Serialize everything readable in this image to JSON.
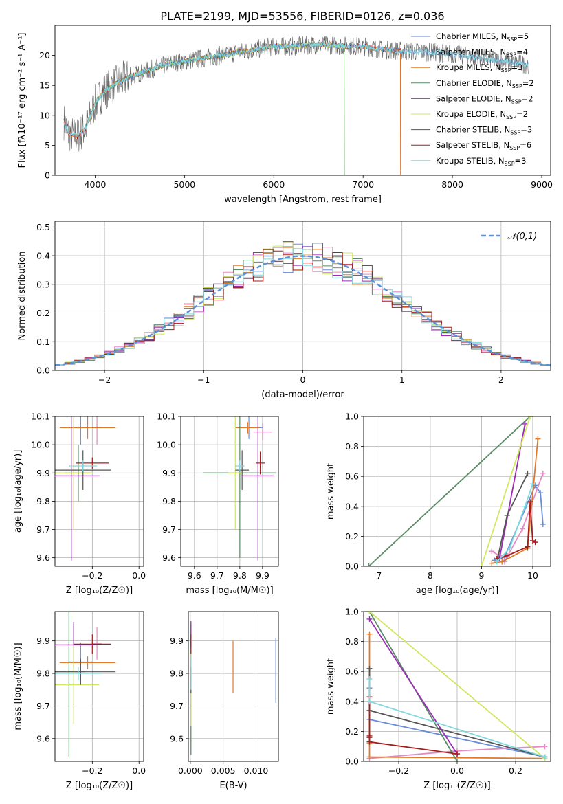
{
  "figure": {
    "title": "PLATE=2199, MJD=53556, FIBERID=0126, z=0.036"
  },
  "colors": {
    "Chabrier MILES": "#6a8bd9",
    "Salpeter MILES": "#e38ac2",
    "Kroupa MILES": "#e07a2a",
    "Chabrier ELODIE": "#5a8a66",
    "Salpeter ELODIE": "#9b2bb5",
    "Kroupa ELODIE": "#cfe860",
    "Chabrier STELIB": "#555555",
    "Salpeter STELIB": "#a81c1c",
    "Kroupa STELIB": "#7fd8e0"
  },
  "chart_data": [
    {
      "id": "spectrum",
      "type": "line",
      "title": "",
      "xlabel": "wavelength [Angstrom, rest frame]",
      "ylabel": "Flux [fλ10⁻¹⁷ erg cm⁻² s⁻¹ A⁻¹]",
      "xlim": [
        3550,
        9100
      ],
      "ylim": [
        0,
        25
      ],
      "xticks": [
        4000,
        5000,
        6000,
        7000,
        8000,
        9000
      ],
      "yticks": [
        0,
        5,
        10,
        15,
        20
      ],
      "grid": false,
      "legend_position": "top-right",
      "legend": [
        {
          "name": "Chabrier MILES",
          "nssp": "5"
        },
        {
          "name": "Salpeter MILES",
          "nssp": "4"
        },
        {
          "name": "Kroupa MILES",
          "nssp": "3"
        },
        {
          "name": "Chabrier ELODIE",
          "nssp": "2"
        },
        {
          "name": "Salpeter ELODIE",
          "nssp": "2"
        },
        {
          "name": "Kroupa ELODIE",
          "nssp": "2"
        },
        {
          "name": "Chabrier STELIB",
          "nssp": "3"
        },
        {
          "name": "Salpeter STELIB",
          "nssp": "6"
        },
        {
          "name": "Kroupa STELIB",
          "nssp": "3"
        }
      ],
      "continuum": {
        "x": [
          3650,
          3700,
          3800,
          3900,
          4000,
          4100,
          4200,
          4400,
          4600,
          4800,
          5000,
          5200,
          5400,
          5600,
          5800,
          6000,
          6200,
          6500,
          6800,
          7000,
          7200,
          7400,
          7600,
          7800,
          8000,
          8200,
          8400,
          8600,
          8800
        ],
        "y": [
          9,
          7,
          6.5,
          8,
          12,
          14,
          15,
          16.5,
          17.5,
          18.5,
          19,
          19.5,
          20,
          20.5,
          21,
          21.5,
          21.5,
          21.8,
          21.6,
          21.5,
          21,
          20.8,
          20.6,
          20.5,
          20.2,
          19.8,
          19.3,
          19,
          18.5
        ]
      },
      "model_range": {
        "x": [
          3650,
          8850
        ],
        "note_models": [
          "MILES",
          "ELODIE",
          "STELIB"
        ]
      }
    },
    {
      "id": "residuals",
      "type": "bar",
      "title": "",
      "xlabel": "(data-model)/error",
      "ylabel": "Normed distribution",
      "xlim": [
        -2.5,
        2.5
      ],
      "ylim": [
        0,
        0.52
      ],
      "xticks": [
        -2,
        -1,
        0,
        1,
        2
      ],
      "yticks": [
        0.0,
        0.1,
        0.2,
        0.3,
        0.4,
        0.5
      ],
      "grid": true,
      "legend_position": "top-right",
      "legend": [
        {
          "name": "𝒩(0,1)"
        }
      ],
      "bin_width": 0.1
    },
    {
      "id": "z-age",
      "type": "scatter",
      "xlabel": "Z [log₁₀(Z/Z☉)]",
      "ylabel": "age  [log₁₀(age/yr)]",
      "xlim": [
        -0.36,
        0.02
      ],
      "ylim": [
        9.57,
        10.1
      ],
      "xticks": [
        -0.2,
        0.0
      ],
      "yticks": [
        9.6,
        9.7,
        9.8,
        9.9,
        10.0,
        10.1
      ],
      "grid": true,
      "points": [
        {
          "model": "Chabrier MILES",
          "x": -0.25,
          "y": 10.06,
          "xerr": 0.02,
          "yerr": 0.06
        },
        {
          "model": "Salpeter MILES",
          "x": -0.18,
          "y": 10.06,
          "xerr": 0.02,
          "yerr": 0.06
        },
        {
          "model": "Kroupa MILES",
          "x": -0.22,
          "y": 10.06,
          "xerr": 0.12,
          "yerr": 0.04
        },
        {
          "model": "Chabrier ELODIE",
          "x": -0.26,
          "y": 9.9,
          "xerr": 0.06,
          "yerr": 0.1
        },
        {
          "model": "Salpeter ELODIE",
          "x": -0.29,
          "y": 9.89,
          "xerr": 0.12,
          "yerr": 0.3
        },
        {
          "model": "Kroupa ELODIE",
          "x": -0.28,
          "y": 9.9,
          "xerr": 0.08,
          "yerr": 0.2
        },
        {
          "model": "Chabrier STELIB",
          "x": -0.24,
          "y": 9.91,
          "xerr": 0.12,
          "yerr": 0.07
        },
        {
          "model": "Salpeter STELIB",
          "x": -0.2,
          "y": 9.935,
          "xerr": 0.07,
          "yerr": 0.02
        },
        {
          "model": "Kroupa STELIB",
          "x": -0.24,
          "y": 9.925,
          "xerr": 0.06,
          "yerr": 0.02
        }
      ]
    },
    {
      "id": "mass-age",
      "type": "scatter",
      "xlabel": "mass [log₁₀(M/M☉)]",
      "ylabel": "",
      "xlim": [
        9.54,
        9.97
      ],
      "ylim": [
        9.57,
        10.1
      ],
      "xticks": [
        9.6,
        9.7,
        9.8,
        9.9
      ],
      "yticks": [
        9.6,
        9.7,
        9.8,
        9.9,
        10.0,
        10.1
      ],
      "grid": true,
      "points": [
        {
          "model": "Chabrier MILES",
          "x": 9.84,
          "y": 10.06,
          "xerr": 0.06,
          "yerr": 0.04
        },
        {
          "model": "Salpeter MILES",
          "x": 9.9,
          "y": 10.045,
          "xerr": 0.04,
          "yerr": 0.03
        },
        {
          "model": "Kroupa MILES",
          "x": 9.835,
          "y": 10.06,
          "xerr": 0.05,
          "yerr": 0.02
        },
        {
          "model": "Chabrier ELODIE",
          "x": 9.8,
          "y": 9.9,
          "xerr": 0.16,
          "yerr": 0.3
        },
        {
          "model": "Salpeter ELODIE",
          "x": 9.88,
          "y": 9.89,
          "xerr": 0.07,
          "yerr": 0.3
        },
        {
          "model": "Kroupa ELODIE",
          "x": 9.78,
          "y": 9.9,
          "xerr": 0.03,
          "yerr": 0.2
        },
        {
          "model": "Chabrier STELIB",
          "x": 9.81,
          "y": 9.91,
          "xerr": 0.03,
          "yerr": 0.07
        },
        {
          "model": "Salpeter STELIB",
          "x": 9.89,
          "y": 9.935,
          "xerr": 0.02,
          "yerr": 0.04
        },
        {
          "model": "Kroupa STELIB",
          "x": 9.8,
          "y": 9.925,
          "xerr": 0.02,
          "yerr": 0.02
        }
      ]
    },
    {
      "id": "age-massweight",
      "type": "line",
      "xlabel": "age  [log₁₀(age/yr)]",
      "ylabel": "mass weight",
      "xlim": [
        6.7,
        10.35
      ],
      "ylim": [
        0,
        1
      ],
      "xticks": [
        7,
        8,
        9,
        10
      ],
      "yticks": [
        0.0,
        0.2,
        0.4,
        0.6,
        0.8,
        1.0
      ],
      "grid": true,
      "series": [
        {
          "model": "Chabrier MILES",
          "x": [
            9.25,
            9.45,
            10.05,
            10.15,
            10.2
          ],
          "y": [
            0.04,
            0.06,
            0.54,
            0.49,
            0.28
          ]
        },
        {
          "model": "Salpeter MILES",
          "x": [
            9.2,
            9.35,
            9.45,
            9.8,
            10.2
          ],
          "y": [
            0.1,
            0.07,
            0.03,
            0.25,
            0.62
          ]
        },
        {
          "model": "Kroupa MILES",
          "x": [
            9.2,
            9.4,
            9.9,
            10.1
          ],
          "y": [
            0.02,
            0.03,
            0.12,
            0.85
          ]
        },
        {
          "model": "Chabrier ELODIE",
          "x": [
            6.8,
            9.95
          ],
          "y": [
            0.0,
            1.0
          ]
        },
        {
          "model": "Salpeter ELODIE",
          "x": [
            9.35,
            9.85
          ],
          "y": [
            0.05,
            0.95
          ]
        },
        {
          "model": "Kroupa ELODIE",
          "x": [
            9.0,
            9.95
          ],
          "y": [
            0.0,
            1.0
          ]
        },
        {
          "model": "Chabrier STELIB",
          "x": [
            9.3,
            9.5,
            9.9
          ],
          "y": [
            0.03,
            0.34,
            0.62
          ]
        },
        {
          "model": "Salpeter STELIB",
          "x": [
            9.3,
            9.5,
            9.9,
            9.95,
            10.0,
            10.05
          ],
          "y": [
            0.05,
            0.07,
            0.13,
            0.43,
            0.17,
            0.16
          ]
        },
        {
          "model": "Kroupa STELIB",
          "x": [
            9.3,
            9.55,
            9.85,
            10.0
          ],
          "y": [
            0.03,
            0.12,
            0.4,
            0.55
          ]
        }
      ]
    },
    {
      "id": "z-mass",
      "type": "scatter",
      "xlabel": "Z [log₁₀(Z/Z☉)]",
      "ylabel": "mass [log₁₀(M/M☉)]",
      "xlim": [
        -0.36,
        0.02
      ],
      "ylim": [
        9.53,
        9.99
      ],
      "xticks": [
        -0.2,
        0.0
      ],
      "yticks": [
        9.6,
        9.7,
        9.8,
        9.9
      ],
      "grid": true,
      "points": [
        {
          "model": "Chabrier MILES",
          "x": -0.25,
          "y": 9.835,
          "xerr": 0.05,
          "yerr": 0.06
        },
        {
          "model": "Salpeter MILES",
          "x": -0.18,
          "y": 9.893,
          "xerr": 0.02,
          "yerr": 0.05
        },
        {
          "model": "Kroupa MILES",
          "x": -0.22,
          "y": 9.833,
          "xerr": 0.12,
          "yerr": 0.02
        },
        {
          "model": "Chabrier ELODIE",
          "x": -0.3,
          "y": 9.805,
          "xerr": 0.07,
          "yerr": 0.26
        },
        {
          "model": "Salpeter ELODIE",
          "x": -0.28,
          "y": 9.888,
          "xerr": 0.09,
          "yerr": 0.07
        },
        {
          "model": "Kroupa ELODIE",
          "x": -0.28,
          "y": 9.765,
          "xerr": 0.11,
          "yerr": 0.12
        },
        {
          "model": "Chabrier STELIB",
          "x": -0.25,
          "y": 9.805,
          "xerr": 0.15,
          "yerr": 0.04
        },
        {
          "model": "Salpeter STELIB",
          "x": -0.2,
          "y": 9.89,
          "xerr": 0.08,
          "yerr": 0.03
        },
        {
          "model": "Kroupa STELIB",
          "x": -0.26,
          "y": 9.8,
          "xerr": 0.1,
          "yerr": 0.02
        }
      ]
    },
    {
      "id": "ebv-mass",
      "type": "scatter",
      "xlabel": "E(B-V)",
      "ylabel": "",
      "xlim": [
        -0.0003,
        0.0134
      ],
      "ylim": [
        9.53,
        9.99
      ],
      "xticks": [
        0.0,
        0.005,
        0.01
      ],
      "xticklabels": [
        "0.000",
        "0.005",
        "0.010"
      ],
      "yticks": [
        9.6,
        9.7,
        9.8,
        9.9
      ],
      "grid": true,
      "points": [
        {
          "model": "Chabrier MILES",
          "x": 0.013,
          "y": 9.81,
          "yerr": 0.1
        },
        {
          "model": "Salpeter MILES",
          "x": 0.0001,
          "y": 9.9,
          "yerr": 0.06
        },
        {
          "model": "Kroupa MILES",
          "x": 0.0065,
          "y": 9.82,
          "yerr": 0.08
        },
        {
          "model": "Chabrier ELODIE",
          "x": 0.0001,
          "y": 9.75,
          "yerr": 0.2
        },
        {
          "model": "Salpeter ELODIE",
          "x": 0.0001,
          "y": 9.89,
          "yerr": 0.07
        },
        {
          "model": "Kroupa ELODIE",
          "x": 0.0001,
          "y": 9.76,
          "yerr": 0.12
        },
        {
          "model": "Chabrier STELIB",
          "x": 0.0001,
          "y": 9.78,
          "yerr": 0.04
        },
        {
          "model": "Salpeter STELIB",
          "x": 0.0001,
          "y": 9.89,
          "yerr": 0.03
        },
        {
          "model": "Kroupa STELIB",
          "x": 0.0001,
          "y": 9.8,
          "yerr": 0.05
        }
      ]
    },
    {
      "id": "z-massweight",
      "type": "line",
      "xlabel": "Z [log₁₀(Z/Z☉)]",
      "ylabel": "mass weight",
      "xlim": [
        -0.32,
        0.32
      ],
      "ylim": [
        0,
        1
      ],
      "xticks": [
        -0.2,
        0.0,
        0.2
      ],
      "yticks": [
        0.0,
        0.2,
        0.4,
        0.6,
        0.8,
        1.0
      ],
      "grid": true,
      "series": [
        {
          "model": "Chabrier MILES",
          "x": [
            -0.3,
            -0.3,
            0.3
          ],
          "y": [
            0.49,
            0.28,
            0.03
          ]
        },
        {
          "model": "Salpeter MILES",
          "x": [
            -0.3,
            0.0,
            0.3
          ],
          "y": [
            0.02,
            0.07,
            0.1
          ]
        },
        {
          "model": "Kroupa MILES",
          "x": [
            -0.3,
            -0.3,
            -0.3,
            0.3
          ],
          "y": [
            0.85,
            0.12,
            0.03,
            0.02
          ]
        },
        {
          "model": "Chabrier ELODIE",
          "x": [
            -0.3,
            0.0
          ],
          "y": [
            1.0,
            0.0
          ]
        },
        {
          "model": "Salpeter ELODIE",
          "x": [
            -0.3,
            0.0
          ],
          "y": [
            0.95,
            0.05
          ]
        },
        {
          "model": "Kroupa ELODIE",
          "x": [
            -0.3,
            0.3
          ],
          "y": [
            1.0,
            0.02
          ]
        },
        {
          "model": "Chabrier STELIB",
          "x": [
            -0.3,
            -0.3,
            0.3
          ],
          "y": [
            0.62,
            0.34,
            0.03
          ]
        },
        {
          "model": "Salpeter STELIB",
          "x": [
            -0.3,
            -0.3,
            -0.3,
            -0.3,
            0.0
          ],
          "y": [
            0.43,
            0.17,
            0.16,
            0.13,
            0.05
          ]
        },
        {
          "model": "Kroupa STELIB",
          "x": [
            -0.3,
            -0.3,
            0.3
          ],
          "y": [
            0.55,
            0.4,
            0.03
          ]
        }
      ]
    }
  ]
}
